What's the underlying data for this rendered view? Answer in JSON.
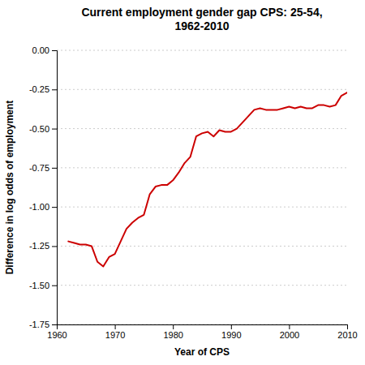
{
  "chart_data": {
    "type": "line",
    "title": "Current employment gender gap CPS: 25-54,\n1962-2010",
    "x_label": "Year of CPS",
    "y_label": "Difference in log odds of employment",
    "x": [
      1962,
      1963,
      1964,
      1965,
      1966,
      1967,
      1968,
      1969,
      1970,
      1971,
      1972,
      1973,
      1974,
      1975,
      1976,
      1977,
      1978,
      1979,
      1980,
      1981,
      1982,
      1983,
      1984,
      1985,
      1986,
      1987,
      1988,
      1989,
      1990,
      1991,
      1992,
      1993,
      1994,
      1995,
      1996,
      1997,
      1998,
      1999,
      2000,
      2001,
      2002,
      2003,
      2004,
      2005,
      2006,
      2007,
      2008,
      2009,
      2010
    ],
    "values": [
      -1.22,
      -1.23,
      -1.24,
      -1.24,
      -1.25,
      -1.35,
      -1.38,
      -1.32,
      -1.3,
      -1.22,
      -1.14,
      -1.1,
      -1.07,
      -1.05,
      -0.92,
      -0.87,
      -0.86,
      -0.86,
      -0.83,
      -0.78,
      -0.72,
      -0.68,
      -0.55,
      -0.53,
      -0.52,
      -0.55,
      -0.51,
      -0.52,
      -0.52,
      -0.5,
      -0.46,
      -0.42,
      -0.38,
      -0.37,
      -0.38,
      -0.38,
      -0.38,
      -0.37,
      -0.36,
      -0.37,
      -0.36,
      -0.37,
      -0.37,
      -0.35,
      -0.35,
      -0.36,
      -0.35,
      -0.29,
      -0.27
    ],
    "color": "#cc0000",
    "xlim": [
      1960,
      2010
    ],
    "xticks": [
      1960,
      1970,
      1980,
      1990,
      2000,
      2010
    ],
    "ylim": [
      -1.75,
      0.0
    ],
    "yticks": [
      {
        "value": 0.0,
        "label": "0.00"
      },
      -0.25,
      {
        "value": -0.5,
        "label": "-0.50"
      },
      -0.75,
      {
        "value": -1.0,
        "label": "-1.00"
      },
      -1.25,
      {
        "value": -1.5,
        "label": "-1.50"
      },
      -1.75
    ],
    "grid": "y"
  }
}
